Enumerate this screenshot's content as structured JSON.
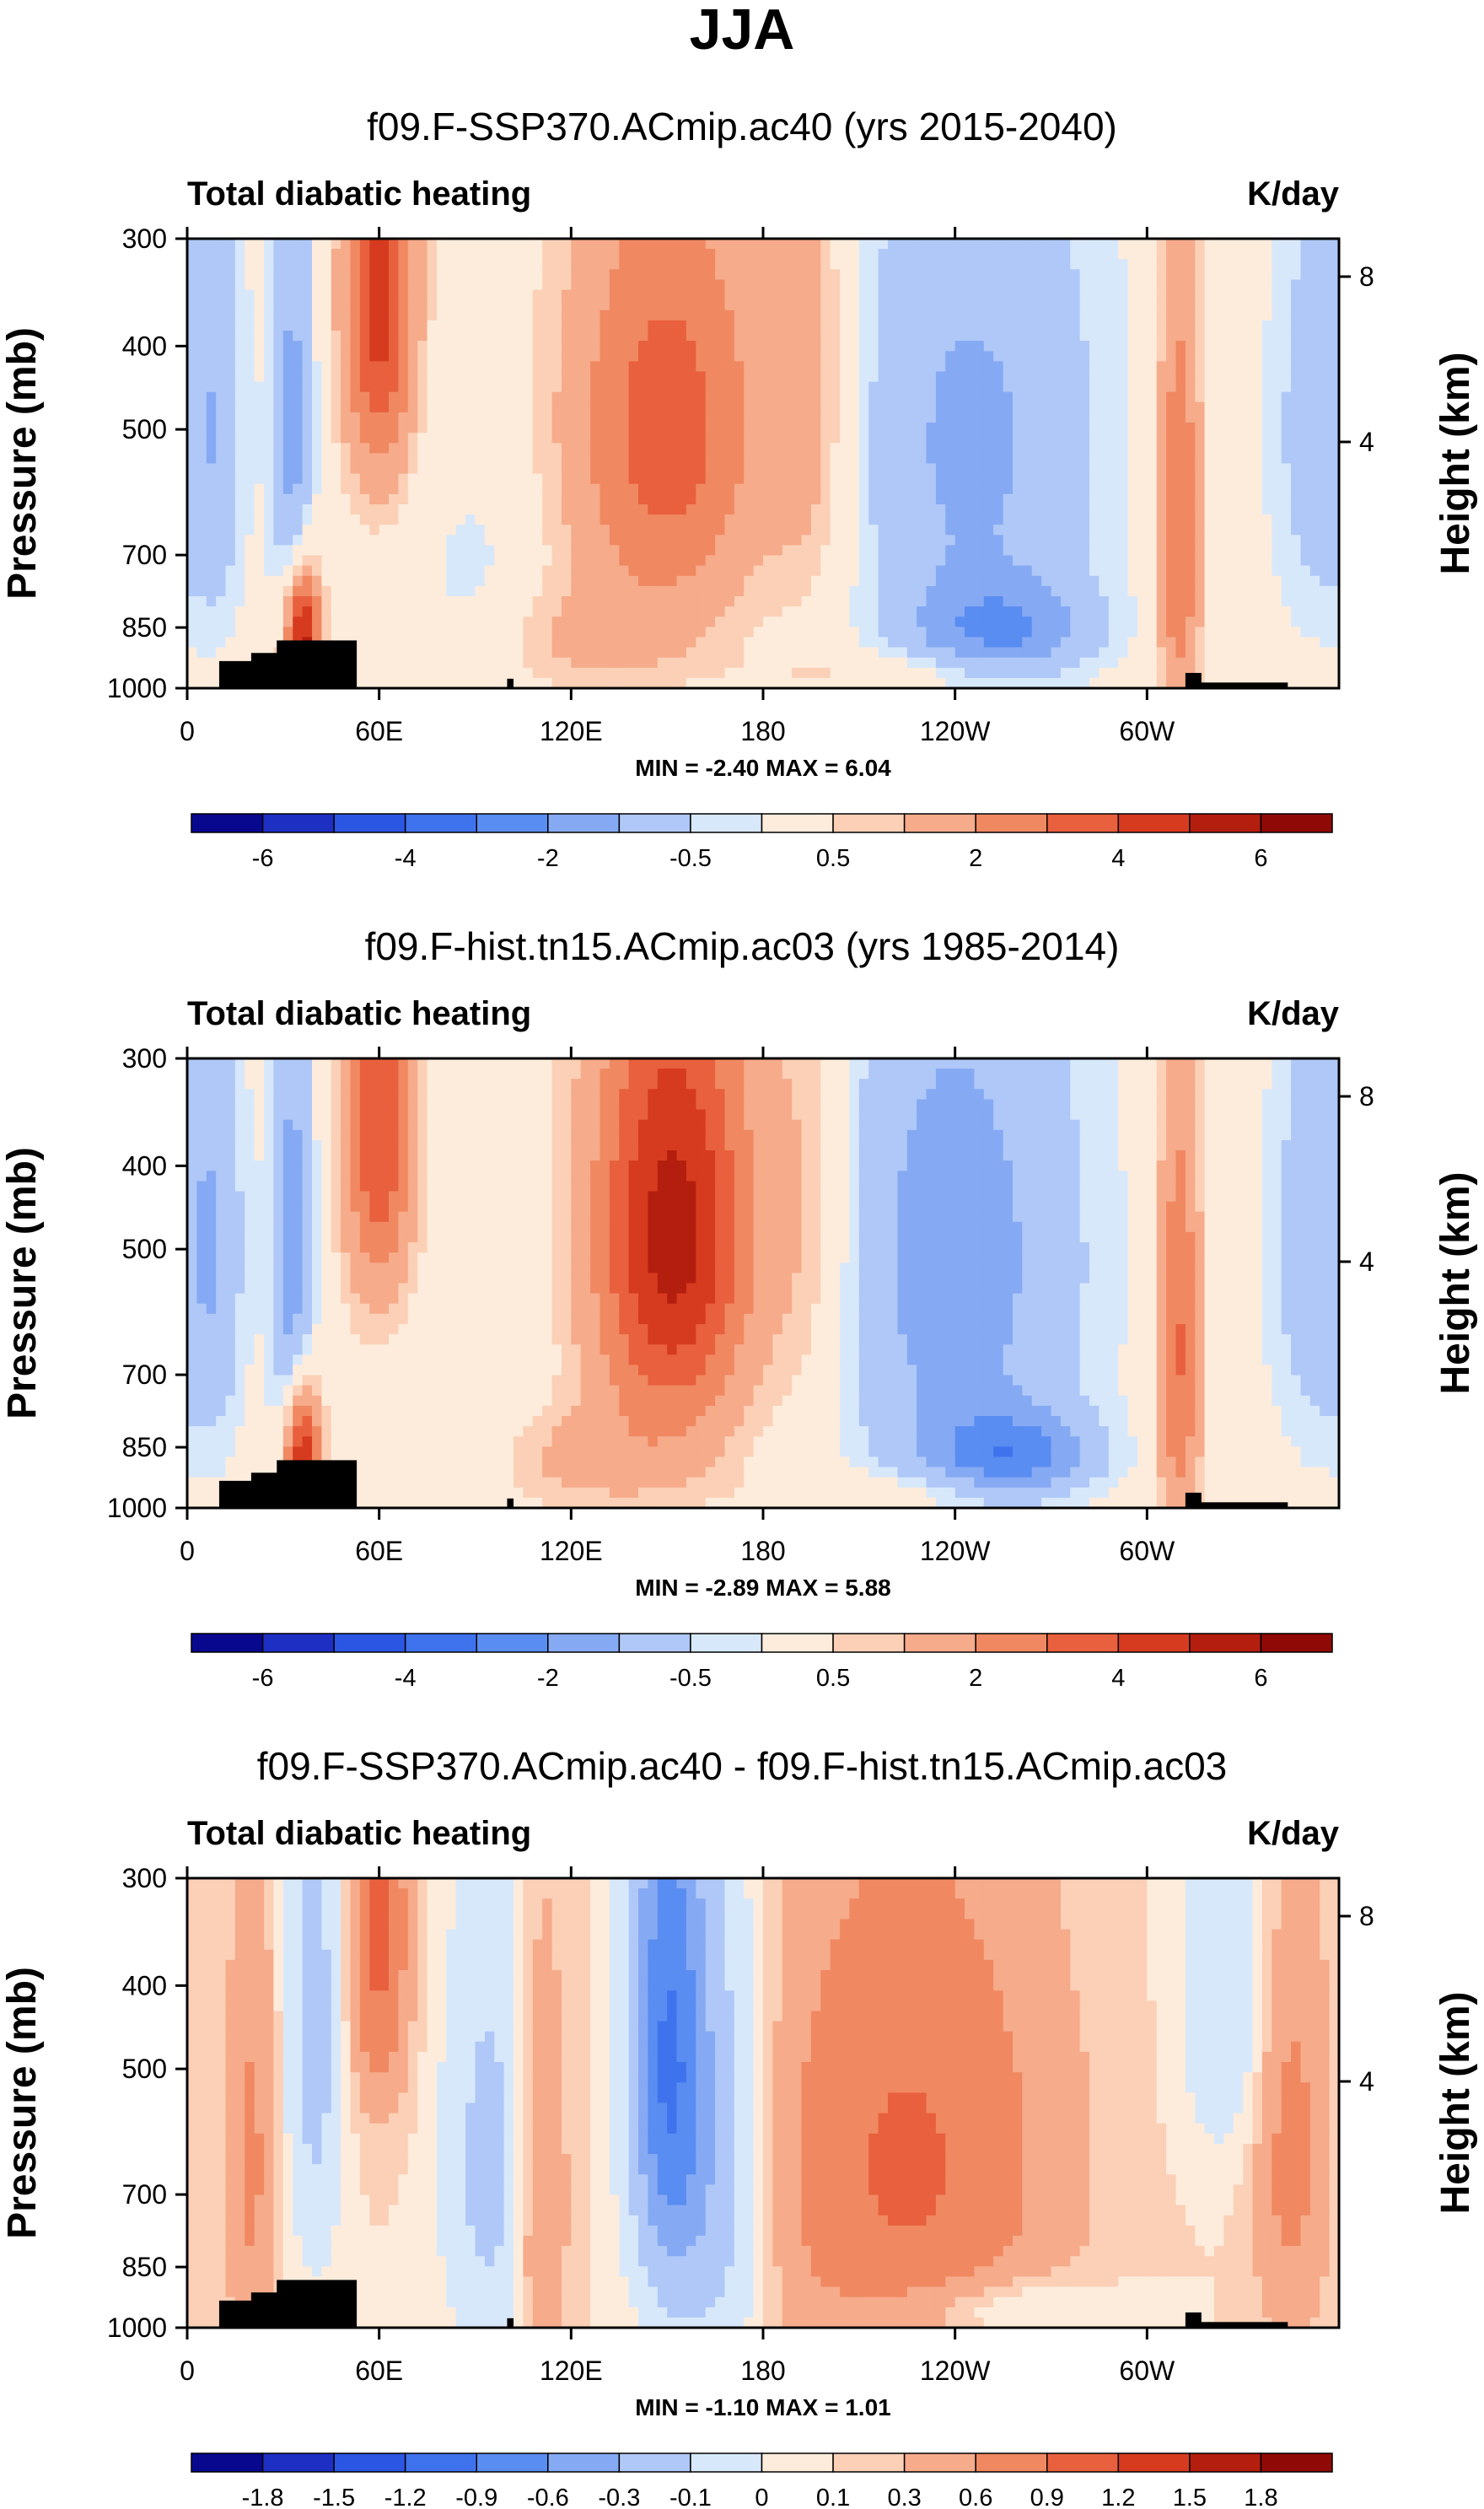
{
  "figure": {
    "season": "JJA",
    "min_label": "MIN =",
    "max_label": "MAX ="
  },
  "chart_data": [
    {
      "type": "heatmap",
      "title": "f09.F-SSP370.ACmip.ac40 (yrs 2015-2040)",
      "left_label": "Total diabatic heating",
      "units": "K/day",
      "ylabel": "Pressure (mb)",
      "ylabel_right": "Height (km)",
      "x_ticks": [
        "0",
        "60E",
        "120E",
        "180",
        "120W",
        "60W"
      ],
      "y_ticks": [
        "300",
        "400",
        "500",
        "700",
        "850",
        "1000"
      ],
      "y_right_ticks": [
        "8",
        "4"
      ],
      "min": "-2.40",
      "max": "6.04",
      "colorbar_labels": [
        "-6",
        "-4",
        "-2",
        "-0.5",
        "0.5",
        "2",
        "4",
        "6"
      ],
      "levels": [
        -7,
        -6,
        -5,
        -4,
        -3,
        -2,
        -1,
        -0.5,
        0.5,
        1,
        2,
        3,
        4,
        5,
        6
      ],
      "features": [
        {
          "lon": 150,
          "p": 500,
          "value": 3.6,
          "sx": 22,
          "sy": 220
        },
        {
          "lon": 60,
          "p": 350,
          "value": 4.5,
          "sx": 8,
          "sy": 150
        },
        {
          "lon": 36,
          "p": 880,
          "value": 6.0,
          "sx": 4,
          "sy": 120
        },
        {
          "lon": 33,
          "p": 520,
          "value": -2.4,
          "sx": 5,
          "sy": 250
        },
        {
          "lon": 310,
          "p": 650,
          "value": 3.2,
          "sx": 5,
          "sy": 300
        },
        {
          "lon": 245,
          "p": 520,
          "value": -2.2,
          "sx": 30,
          "sy": 300
        },
        {
          "lon": 255,
          "p": 860,
          "value": -2.3,
          "sx": 20,
          "sy": 80
        },
        {
          "lon": 90,
          "p": 780,
          "value": -0.8,
          "sx": 14,
          "sy": 180
        },
        {
          "lon": 10,
          "p": 500,
          "value": -1.2,
          "sx": 6,
          "sy": 250
        },
        {
          "lon": 355,
          "p": 500,
          "value": -1.6,
          "sx": 12,
          "sy": 250
        },
        {
          "lon": 120,
          "p": 880,
          "value": 1.0,
          "sx": 25,
          "sy": 90
        },
        {
          "lon": 195,
          "p": 450,
          "value": 1.5,
          "sx": 10,
          "sy": 250
        },
        {
          "lon": 225,
          "p": 960,
          "value": 0.8,
          "sx": 30,
          "sy": 40
        }
      ]
    },
    {
      "type": "heatmap",
      "title": "f09.F-hist.tn15.ACmip.ac03 (yrs 1985-2014)",
      "left_label": "Total diabatic heating",
      "units": "K/day",
      "ylabel": "Pressure (mb)",
      "ylabel_right": "Height (km)",
      "x_ticks": [
        "0",
        "60E",
        "120E",
        "180",
        "120W",
        "60W"
      ],
      "y_ticks": [
        "300",
        "400",
        "500",
        "700",
        "850",
        "1000"
      ],
      "y_right_ticks": [
        "8",
        "4"
      ],
      "min": "-2.89",
      "max": "5.88",
      "colorbar_labels": [
        "-6",
        "-4",
        "-2",
        "-0.5",
        "0.5",
        "2",
        "4",
        "6"
      ],
      "levels": [
        -7,
        -6,
        -5,
        -4,
        -3,
        -2,
        -1,
        -0.5,
        0.5,
        1,
        2,
        3,
        4,
        5,
        6
      ],
      "features": [
        {
          "lon": 152,
          "p": 480,
          "value": 5.5,
          "sx": 18,
          "sy": 220
        },
        {
          "lon": 60,
          "p": 350,
          "value": 4.0,
          "sx": 8,
          "sy": 150
        },
        {
          "lon": 36,
          "p": 880,
          "value": 5.8,
          "sx": 4,
          "sy": 120
        },
        {
          "lon": 33,
          "p": 520,
          "value": -2.6,
          "sx": 5,
          "sy": 250
        },
        {
          "lon": 310,
          "p": 650,
          "value": 3.2,
          "sx": 5,
          "sy": 300
        },
        {
          "lon": 240,
          "p": 520,
          "value": -2.5,
          "sx": 30,
          "sy": 320
        },
        {
          "lon": 258,
          "p": 870,
          "value": -2.9,
          "sx": 18,
          "sy": 70
        },
        {
          "lon": 90,
          "p": 800,
          "value": -0.6,
          "sx": 14,
          "sy": 180
        },
        {
          "lon": 10,
          "p": 500,
          "value": -1.2,
          "sx": 6,
          "sy": 250
        },
        {
          "lon": 355,
          "p": 500,
          "value": -1.8,
          "sx": 12,
          "sy": 250
        },
        {
          "lon": 120,
          "p": 880,
          "value": 1.2,
          "sx": 25,
          "sy": 90
        },
        {
          "lon": 195,
          "p": 450,
          "value": 1.3,
          "sx": 10,
          "sy": 250
        },
        {
          "lon": 225,
          "p": 960,
          "value": 0.8,
          "sx": 30,
          "sy": 40
        }
      ]
    },
    {
      "type": "heatmap",
      "title": "f09.F-SSP370.ACmip.ac40 - f09.F-hist.tn15.ACmip.ac03",
      "left_label": "Total diabatic heating",
      "units": "K/day",
      "ylabel": "Pressure (mb)",
      "ylabel_right": "Height (km)",
      "x_ticks": [
        "0",
        "60E",
        "120E",
        "180",
        "120W",
        "60W"
      ],
      "y_ticks": [
        "300",
        "400",
        "500",
        "700",
        "850",
        "1000"
      ],
      "y_right_ticks": [
        "8",
        "4"
      ],
      "min": "-1.10",
      "max": "1.01",
      "colorbar_labels": [
        "-1.8",
        "-1.5",
        "-1.2",
        "-0.9",
        "-0.6",
        "-0.3",
        "-0.1",
        "0",
        "0.1",
        "0.3",
        "0.6",
        "0.9",
        "1.2",
        "1.5",
        "1.8"
      ],
      "levels": [
        -2.1,
        -1.8,
        -1.5,
        -1.2,
        -0.9,
        -0.6,
        -0.3,
        -0.1,
        0,
        0.1,
        0.3,
        0.6,
        0.9,
        1.2,
        1.5,
        1.8
      ],
      "features": [
        {
          "lon": 150,
          "p": 480,
          "value": -1.1,
          "sx": 8,
          "sy": 250
        },
        {
          "lon": 165,
          "p": 650,
          "value": -0.5,
          "sx": 12,
          "sy": 300
        },
        {
          "lon": 225,
          "p": 650,
          "value": 0.65,
          "sx": 30,
          "sy": 300
        },
        {
          "lon": 60,
          "p": 350,
          "value": 0.7,
          "sx": 6,
          "sy": 120
        },
        {
          "lon": 95,
          "p": 650,
          "value": -0.4,
          "sx": 10,
          "sy": 280
        },
        {
          "lon": 40,
          "p": 450,
          "value": -0.4,
          "sx": 6,
          "sy": 250
        },
        {
          "lon": 325,
          "p": 400,
          "value": -0.3,
          "sx": 10,
          "sy": 150
        },
        {
          "lon": 345,
          "p": 620,
          "value": 0.4,
          "sx": 8,
          "sy": 250
        },
        {
          "lon": 20,
          "p": 650,
          "value": 0.35,
          "sx": 5,
          "sy": 300
        },
        {
          "lon": 110,
          "p": 700,
          "value": 0.35,
          "sx": 6,
          "sy": 300
        },
        {
          "lon": 250,
          "p": 950,
          "value": -0.3,
          "sx": 25,
          "sy": 60
        }
      ]
    }
  ]
}
